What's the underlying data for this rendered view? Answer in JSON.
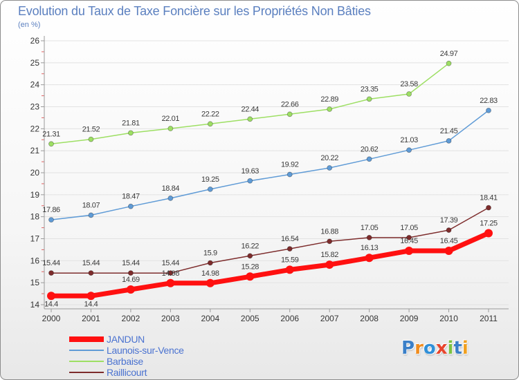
{
  "chart_data": {
    "type": "line",
    "title": "Evolution du Taux de Taxe Foncière sur les Propriétés Non Bâties",
    "subtitle": "(en %)",
    "x": [
      2000,
      2001,
      2002,
      2003,
      2004,
      2005,
      2006,
      2007,
      2008,
      2009,
      2010,
      2011
    ],
    "ylim": [
      14,
      26
    ],
    "yticks": [
      14,
      15,
      16,
      17,
      18,
      19,
      20,
      21,
      22,
      23,
      24,
      25,
      26
    ],
    "grid": true,
    "data_labels": true,
    "legend_position": "bottom-left",
    "series": [
      {
        "name": "JANDUN",
        "color": "#ff1010",
        "values": [
          14.4,
          14.4,
          14.69,
          14.98,
          14.98,
          15.28,
          15.59,
          15.82,
          16.13,
          16.45,
          16.45,
          17.25
        ]
      },
      {
        "name": "Launois-sur-Vence",
        "color": "#5f9bd6",
        "values": [
          17.86,
          18.07,
          18.47,
          18.84,
          19.25,
          19.63,
          19.92,
          20.22,
          20.62,
          21.03,
          21.45,
          22.83
        ]
      },
      {
        "name": "Barbaise",
        "color": "#9ddf63",
        "values": [
          21.31,
          21.52,
          21.81,
          22.01,
          22.22,
          22.44,
          22.66,
          22.89,
          23.35,
          23.58,
          24.97,
          null
        ]
      },
      {
        "name": "Raillicourt",
        "color": "#7d2c2c",
        "values": [
          15.44,
          15.44,
          15.44,
          15.44,
          15.9,
          16.22,
          16.54,
          16.88,
          17.05,
          17.05,
          17.39,
          18.41
        ]
      }
    ]
  },
  "logo": {
    "text": "Proxiti",
    "letter_colors": [
      "#3a7fc8",
      "#f08c1e",
      "#2f8fd8",
      "#e8452c",
      "#7cc242",
      "#3a7fc8",
      "#f0a020"
    ]
  },
  "colors": {
    "title": "#5a7fbf",
    "legend_text": "#4a72d0",
    "border": "#8c8c8c"
  }
}
